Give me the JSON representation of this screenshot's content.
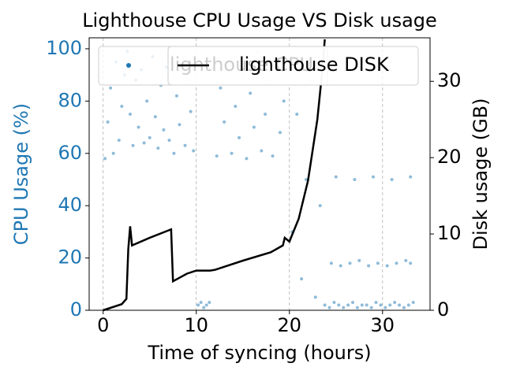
{
  "chart_data": {
    "type": "scatter",
    "title": "Lighthouse CPU Usage VS Disk usage",
    "x_label": "Time of syncing (hours)",
    "y_label": "CPU Usage (%)",
    "y2_label": "Disk usage (GB)",
    "xlim": [
      -1.5,
      35.1
    ],
    "xticks": [
      0,
      10,
      20,
      30
    ],
    "ylim": [
      0,
      104.2
    ],
    "yticks": [
      0,
      20,
      40,
      60,
      80,
      100
    ],
    "y2lim": [
      0,
      35.7
    ],
    "y2ticks": [
      0,
      10,
      20,
      30
    ],
    "grid": "x",
    "series": [
      {
        "name": "lighthouse CPU",
        "type": "scatter",
        "color": "#1f77b4",
        "x": [
          0.2,
          0.5,
          0.8,
          1.1,
          1.4,
          1.7,
          2.0,
          2.3,
          2.6,
          2.9,
          3.2,
          3.5,
          3.8,
          4.1,
          4.4,
          4.7,
          5.0,
          5.3,
          5.6,
          5.9,
          6.2,
          6.5,
          6.8,
          7.1,
          7.6,
          7.9,
          8.2,
          8.5,
          8.8,
          9.1,
          9.4,
          9.7,
          10.2,
          10.5,
          10.8,
          11.1,
          11.4,
          12.2,
          12.6,
          13.0,
          13.4,
          13.8,
          14.2,
          14.6,
          15.0,
          15.4,
          15.8,
          16.2,
          16.6,
          17.0,
          17.4,
          17.8,
          18.2,
          18.6,
          19.0,
          19.4,
          20.3,
          20.8,
          21.3,
          21.8,
          22.3,
          22.8,
          23.3,
          23.8,
          24.3,
          24.8,
          25.3,
          25.8,
          26.3,
          26.8,
          27.3,
          27.8,
          28.3,
          28.8,
          29.3,
          29.8,
          30.3,
          30.8,
          31.3,
          31.8,
          32.3,
          32.8,
          33.3,
          24.5,
          25.5,
          26.5,
          27.5,
          28.5,
          29.5,
          30.5,
          31.5,
          32.5,
          33,
          25,
          27,
          29,
          31,
          33
        ],
        "values": [
          58,
          72,
          85,
          60,
          95,
          65,
          78,
          90,
          99,
          75,
          63,
          88,
          70,
          92,
          64,
          80,
          66,
          97,
          74,
          62,
          86,
          69,
          93,
          65,
          60,
          82,
          71,
          96,
          63,
          88,
          76,
          61,
          2,
          3,
          1,
          2,
          3,
          59,
          85,
          72,
          95,
          60,
          78,
          66,
          90,
          58,
          83,
          70,
          99,
          61,
          75,
          88,
          59,
          93,
          68,
          80,
          30,
          75,
          12,
          50,
          88,
          5,
          40,
          2,
          1,
          3,
          2,
          1,
          2,
          3,
          1,
          2,
          2,
          1,
          3,
          2,
          1,
          2,
          3,
          2,
          1,
          2,
          3,
          18,
          17,
          18,
          19,
          17,
          18,
          17,
          18,
          19,
          18,
          51,
          50,
          51,
          50,
          51
        ]
      },
      {
        "name": "lighthouse DISK",
        "type": "line",
        "color": "#000000",
        "axis": "y2",
        "x": [
          0,
          2,
          2.5,
          2.7,
          2.9,
          3.1,
          5,
          7.3,
          7.5,
          9,
          10,
          11.5,
          12,
          15,
          18,
          19.3,
          19.5,
          20,
          21,
          22,
          23,
          23.5,
          23.8
        ],
        "values": [
          0,
          0.8,
          1.5,
          8,
          11,
          8.5,
          9.5,
          10.6,
          3.8,
          4.8,
          5.2,
          5.2,
          5.3,
          6.5,
          7.6,
          8.5,
          9.5,
          9,
          12,
          17,
          25,
          31,
          35.5
        ]
      }
    ]
  }
}
